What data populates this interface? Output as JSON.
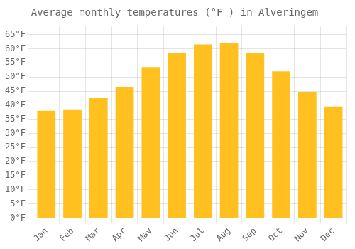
{
  "chart_data": {
    "type": "bar",
    "title": "Average monthly temperatures (°F ) in Alveringem",
    "categories": [
      "Jan",
      "Feb",
      "Mar",
      "Apr",
      "May",
      "Jun",
      "Jul",
      "Aug",
      "Sep",
      "Oct",
      "Nov",
      "Dec"
    ],
    "values": [
      38,
      38.5,
      42.5,
      46.5,
      53.5,
      58.5,
      61.5,
      62,
      58.5,
      52,
      44.5,
      39.5
    ],
    "color": "#FFC020",
    "ylim": [
      0,
      68
    ],
    "yticks": [
      {
        "value": 0,
        "label": "0°F"
      },
      {
        "value": 5,
        "label": "5°F"
      },
      {
        "value": 10,
        "label": "10°F"
      },
      {
        "value": 15,
        "label": "15°F"
      },
      {
        "value": 20,
        "label": "20°F"
      },
      {
        "value": 25,
        "label": "25°F"
      },
      {
        "value": 30,
        "label": "30°F"
      },
      {
        "value": 35,
        "label": "35°F"
      },
      {
        "value": 40,
        "label": "40°F"
      },
      {
        "value": 45,
        "label": "45°F"
      },
      {
        "value": 50,
        "label": "50°F"
      },
      {
        "value": 55,
        "label": "55°F"
      },
      {
        "value": 60,
        "label": "60°F"
      },
      {
        "value": 65,
        "label": "65°F"
      }
    ],
    "grid": true
  }
}
